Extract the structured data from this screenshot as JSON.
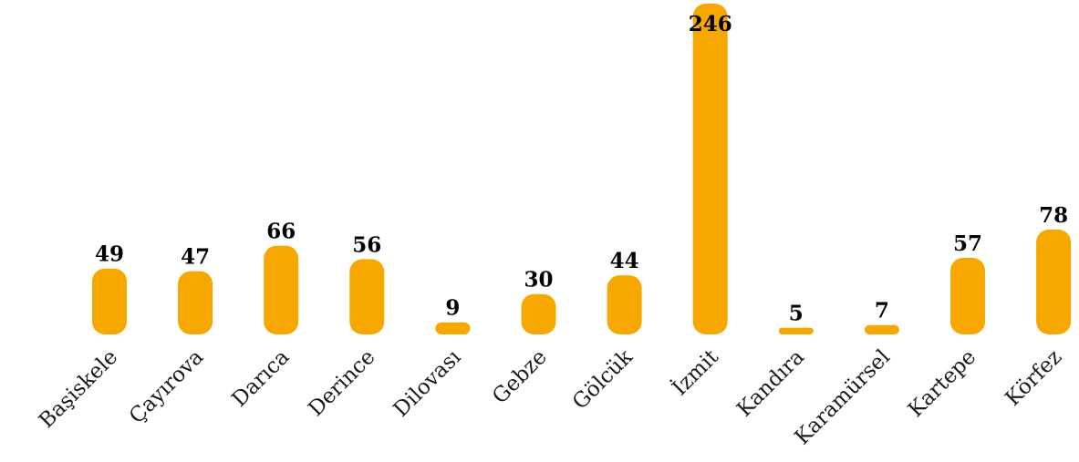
{
  "chart_data": {
    "type": "bar",
    "title": "",
    "xlabel": "",
    "ylabel": "",
    "categories": [
      "Başiskele",
      "Çayırova",
      "Darıca",
      "Derince",
      "Dilovası",
      "Gebze",
      "Gölcük",
      "İzmit",
      "Kandıra",
      "Karamürsel",
      "Kartepe",
      "Körfez"
    ],
    "values": [
      49,
      47,
      66,
      56,
      9,
      30,
      44,
      246,
      5,
      7,
      57,
      78
    ],
    "ylim": [
      0,
      246
    ],
    "grid": false,
    "bar_color": "#F7A800"
  }
}
